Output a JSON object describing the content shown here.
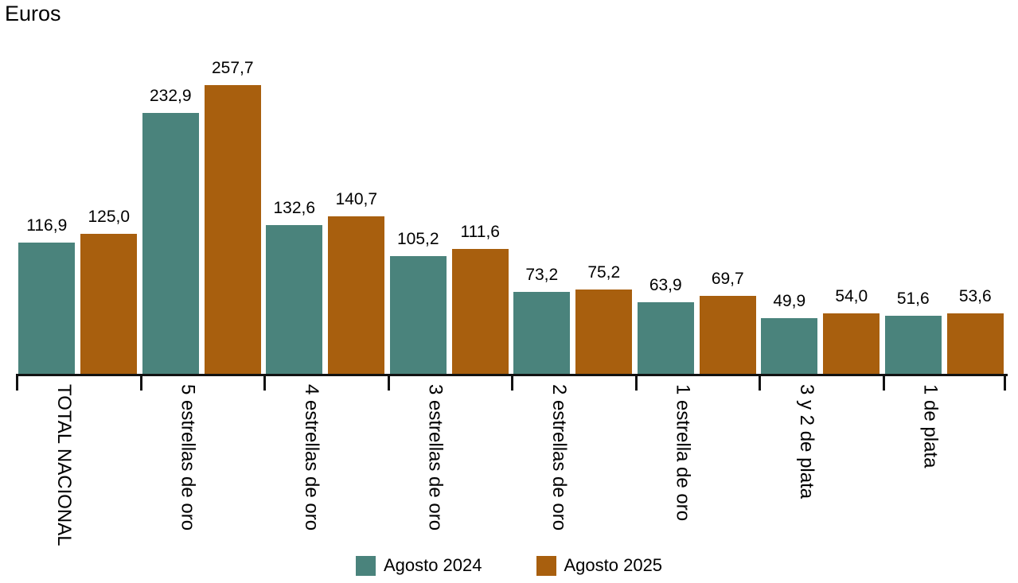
{
  "chart_data": {
    "type": "bar",
    "title": "Euros",
    "categories": [
      "TOTAL NACIONAL",
      "5 estrellas de oro",
      "4 estrellas de oro",
      "3 estrellas de oro",
      "2 estrellas de oro",
      "1 estrella de oro",
      "3 y 2 de plata",
      "1 de plata"
    ],
    "series": [
      {
        "name": "Agosto 2024",
        "color": "#4a837c",
        "values": [
          116.9,
          232.9,
          132.6,
          105.2,
          73.2,
          63.9,
          49.9,
          51.6
        ],
        "labels": [
          "116,9",
          "232,9",
          "132,6",
          "105,2",
          "73,2",
          "63,9",
          "49,9",
          "51,6"
        ]
      },
      {
        "name": "Agosto 2025",
        "color": "#a85f0e",
        "values": [
          125.0,
          257.7,
          140.7,
          111.6,
          75.2,
          69.7,
          54.0,
          53.6
        ],
        "labels": [
          "125,0",
          "257,7",
          "140,7",
          "111,6",
          "75,2",
          "69,7",
          "54,0",
          "53,6"
        ]
      }
    ],
    "ylabel": "Euros",
    "ylim": [
      0,
      298
    ],
    "grid": false,
    "legend_position": "bottom",
    "axis_color": "#121212",
    "label_decimal_separator": ","
  }
}
